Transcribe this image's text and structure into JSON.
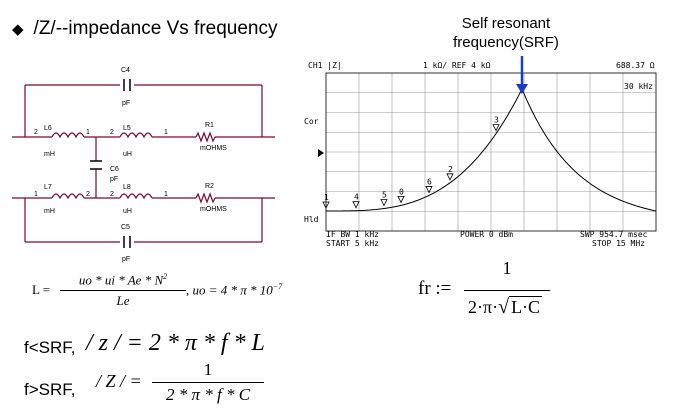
{
  "title": "/Z/--impedance Vs frequency",
  "srf_annotation": {
    "line1": "Self resonant",
    "line2": "frequency(SRF)"
  },
  "schematic": {
    "labels": {
      "c4": "C4",
      "c4_unit": "pF",
      "l6": "L6",
      "l6_unit": "mH",
      "l5": "L5",
      "l5_unit": "uH",
      "r1": "R1",
      "r1_unit": "mOHMS",
      "c6": "C6",
      "c6_unit": "pF",
      "l7": "L7",
      "l7_unit": "mH",
      "l8": "L8",
      "l8_unit": "uH",
      "r2": "R2",
      "r2_unit": "mOHMS",
      "c5": "C5",
      "c5_unit": "pF",
      "pin1": "1",
      "pin2": "2"
    }
  },
  "analyzer": {
    "header_left": "CH1 |Z|",
    "header_center": "1 kΩ/ REF 4 kΩ",
    "header_right": "688.37 Ω",
    "marker_readout": "30 kHz",
    "side_cor": "Cor",
    "side_hld": "Hld",
    "footer_if": "IF BW 1 kHz",
    "footer_power": "POWER  0 dBm",
    "footer_swp": "SWP  954.7 msec",
    "footer_start": "START  5 kHz",
    "footer_stop": "STOP  15 MHz",
    "markers": [
      "1",
      "4",
      "5",
      "0",
      "6",
      "2",
      "3"
    ]
  },
  "formulas": {
    "inductance": {
      "lhs": "L =",
      "numerator": "uo * ui * Ae * N",
      "exponent": "2",
      "denominator": "Le",
      "uo_def": ", uo = 4 * π * 10",
      "uo_exp": "−7"
    },
    "below_srf": {
      "label": "f<SRF,",
      "expr": "/ z / = 2 * π * f * L"
    },
    "above_srf": {
      "label": "f>SRF,",
      "lhs": "/ Z / =",
      "numerator": "1",
      "denominator": "2 * π * f * C"
    },
    "resonance": {
      "lhs": "fr :=",
      "numerator": "1",
      "denominator_prefix": "2·π·",
      "radicand": "L·C"
    }
  },
  "colors": {
    "schematic_wire": "#7a0a2a",
    "analyzer_arrow": "#1a3cc8",
    "trace": "#000000",
    "grid": "#9a9a9a"
  }
}
